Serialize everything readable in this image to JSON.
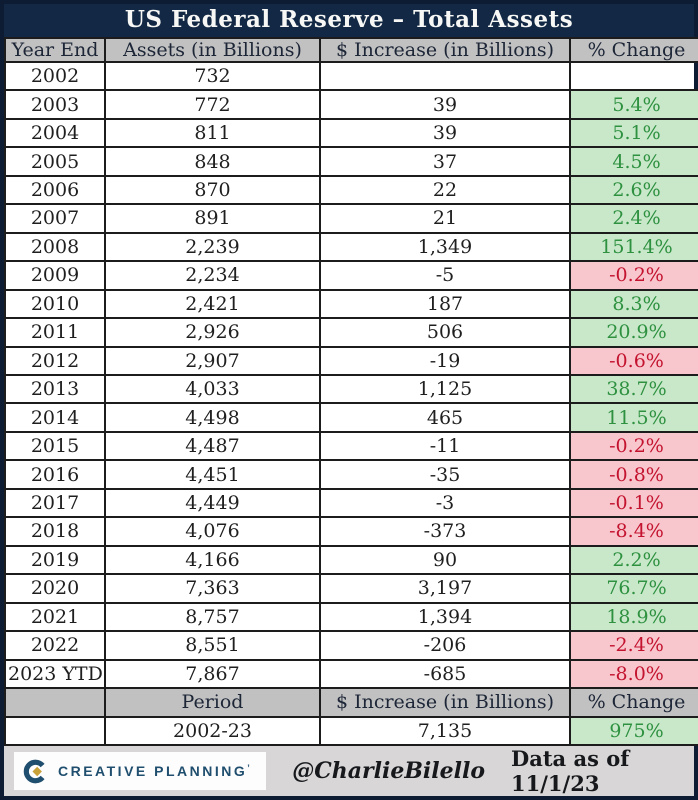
{
  "title": "US Federal Reserve – Total Assets",
  "columns": [
    "Year End",
    "Assets (in Billions)",
    "$ Increase (in Billions)",
    "% Change"
  ],
  "rows": [
    {
      "year": "2002",
      "assets": "732",
      "increase": "",
      "change": "",
      "change_type": "none"
    },
    {
      "year": "2003",
      "assets": "772",
      "increase": "39",
      "change": "5.4%",
      "change_type": "positive"
    },
    {
      "year": "2004",
      "assets": "811",
      "increase": "39",
      "change": "5.1%",
      "change_type": "positive"
    },
    {
      "year": "2005",
      "assets": "848",
      "increase": "37",
      "change": "4.5%",
      "change_type": "positive"
    },
    {
      "year": "2006",
      "assets": "870",
      "increase": "22",
      "change": "2.6%",
      "change_type": "positive"
    },
    {
      "year": "2007",
      "assets": "891",
      "increase": "21",
      "change": "2.4%",
      "change_type": "positive"
    },
    {
      "year": "2008",
      "assets": "2,239",
      "increase": "1,349",
      "change": "151.4%",
      "change_type": "positive"
    },
    {
      "year": "2009",
      "assets": "2,234",
      "increase": "-5",
      "change": "-0.2%",
      "change_type": "negative"
    },
    {
      "year": "2010",
      "assets": "2,421",
      "increase": "187",
      "change": "8.3%",
      "change_type": "positive"
    },
    {
      "year": "2011",
      "assets": "2,926",
      "increase": "506",
      "change": "20.9%",
      "change_type": "positive"
    },
    {
      "year": "2012",
      "assets": "2,907",
      "increase": "-19",
      "change": "-0.6%",
      "change_type": "negative"
    },
    {
      "year": "2013",
      "assets": "4,033",
      "increase": "1,125",
      "change": "38.7%",
      "change_type": "positive"
    },
    {
      "year": "2014",
      "assets": "4,498",
      "increase": "465",
      "change": "11.5%",
      "change_type": "positive"
    },
    {
      "year": "2015",
      "assets": "4,487",
      "increase": "-11",
      "change": "-0.2%",
      "change_type": "negative"
    },
    {
      "year": "2016",
      "assets": "4,451",
      "increase": "-35",
      "change": "-0.8%",
      "change_type": "negative"
    },
    {
      "year": "2017",
      "assets": "4,449",
      "increase": "-3",
      "change": "-0.1%",
      "change_type": "negative"
    },
    {
      "year": "2018",
      "assets": "4,076",
      "increase": "-373",
      "change": "-8.4%",
      "change_type": "negative"
    },
    {
      "year": "2019",
      "assets": "4,166",
      "increase": "90",
      "change": "2.2%",
      "change_type": "positive"
    },
    {
      "year": "2020",
      "assets": "7,363",
      "increase": "3,197",
      "change": "76.7%",
      "change_type": "positive"
    },
    {
      "year": "2021",
      "assets": "8,757",
      "increase": "1,394",
      "change": "18.9%",
      "change_type": "positive"
    },
    {
      "year": "2022",
      "assets": "8,551",
      "increase": "-206",
      "change": "-2.4%",
      "change_type": "negative"
    },
    {
      "year": "2023 YTD",
      "assets": "7,867",
      "increase": "-685",
      "change": "-8.0%",
      "change_type": "negative"
    }
  ],
  "summary": {
    "header": {
      "empty": "",
      "period_label": "Period",
      "increase_label": "$ Increase (in Billions)",
      "change_label": "% Change"
    },
    "row": {
      "empty": "",
      "period": "2002-23",
      "increase": "7,135",
      "change": "975%",
      "change_type": "positive"
    }
  },
  "footer": {
    "logo_text": "CREATIVE PLANNING",
    "logo_mark": "’",
    "handle": "@CharlieBilello",
    "data_as_of": "Data as of 11/1/23"
  },
  "colors": {
    "frame": "#0d1c33",
    "navy": "#122844",
    "header_gray": "#c2c1c1",
    "footer_gray": "#d8d6d6",
    "positive_bg": "#c9e8ca",
    "positive_text": "#2e9140",
    "negative_bg": "#f8c6cd",
    "negative_text": "#c3132f",
    "logo_navy": "#1f4e6e",
    "logo_gold": "#c8a138"
  },
  "chart_data": {
    "type": "table",
    "title": "US Federal Reserve – Total Assets",
    "columns": [
      "Year End",
      "Assets (in Billions)",
      "$ Increase (in Billions)",
      "% Change"
    ],
    "rows": [
      [
        "2002",
        732,
        null,
        null
      ],
      [
        "2003",
        772,
        39,
        5.4
      ],
      [
        "2004",
        811,
        39,
        5.1
      ],
      [
        "2005",
        848,
        37,
        4.5
      ],
      [
        "2006",
        870,
        22,
        2.6
      ],
      [
        "2007",
        891,
        21,
        2.4
      ],
      [
        "2008",
        2239,
        1349,
        151.4
      ],
      [
        "2009",
        2234,
        -5,
        -0.2
      ],
      [
        "2010",
        2421,
        187,
        8.3
      ],
      [
        "2011",
        2926,
        506,
        20.9
      ],
      [
        "2012",
        2907,
        -19,
        -0.6
      ],
      [
        "2013",
        4033,
        1125,
        38.7
      ],
      [
        "2014",
        4498,
        465,
        11.5
      ],
      [
        "2015",
        4487,
        -11,
        -0.2
      ],
      [
        "2016",
        4451,
        -35,
        -0.8
      ],
      [
        "2017",
        4449,
        -3,
        -0.1
      ],
      [
        "2018",
        4076,
        -373,
        -8.4
      ],
      [
        "2019",
        4166,
        90,
        2.2
      ],
      [
        "2020",
        7363,
        3197,
        76.7
      ],
      [
        "2021",
        8757,
        1394,
        18.9
      ],
      [
        "2022",
        8551,
        -206,
        -2.4
      ],
      [
        "2023 YTD",
        7867,
        -685,
        -8.0
      ]
    ],
    "summary_row": {
      "period": "2002-23",
      "increase": 7135,
      "pct_change": 975
    },
    "notes": "% Change cells shaded green when positive, red when negative",
    "source": "@CharlieBilello, Data as of 11/1/23"
  }
}
